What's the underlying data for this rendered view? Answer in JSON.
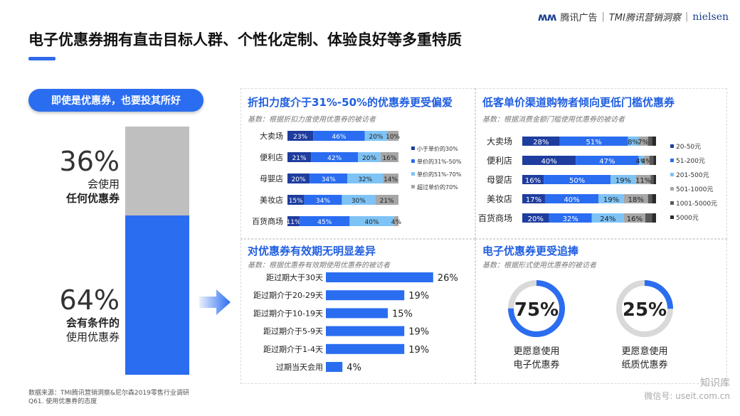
{
  "header": {
    "brand_text": "腾讯广告",
    "sep": "|",
    "brand_tmi": "TMI腾讯营销洞察",
    "brand_nielsen": "nielsen",
    "title": "电子优惠券拥有直击目标人群、个性化定制、体验良好等多重特质"
  },
  "left": {
    "badge": "即使是优惠券，也要投其所好",
    "top_pct": "36%",
    "top_line1": "会使用",
    "top_line2": "任何优惠券",
    "bottom_pct": "64%",
    "bottom_line1": "会有条件的",
    "bottom_line2": "使用优惠券"
  },
  "footer": {
    "source1": "数据来源：TMI腾讯营销洞察&尼尔森2019零售行业调研",
    "source2": "Q61. 使用优惠券的态度",
    "watermark1": "知识库",
    "watermark2": "微信号: useit.com.cn"
  },
  "colors": {
    "dark_blue": "#1f3d9e",
    "blue": "#2a6df0",
    "light_blue": "#7ec3f6",
    "gray": "#a6a6a6",
    "dark_gray": "#595959",
    "darkest": "#2b2b2b"
  },
  "chart_data": [
    {
      "type": "bar",
      "stacked": true,
      "orientation": "horizontal",
      "title": "折扣力度介于31%-50%的优惠券更受偏爱",
      "note": "基数：根据折扣力度使用优惠券的被访者",
      "categories": [
        "大卖场",
        "便利店",
        "母婴店",
        "美妆店",
        "百货商场"
      ],
      "series": [
        {
          "name": "小于单价的30%",
          "values": [
            23,
            21,
            20,
            15,
            11
          ],
          "labels": [
            "23%",
            "21%",
            "20%",
            "15%",
            "11%"
          ]
        },
        {
          "name": "单价的31%-50%",
          "values": [
            46,
            42,
            34,
            34,
            45
          ],
          "labels": [
            "46%",
            "42%",
            "34%",
            "34%",
            "45%"
          ]
        },
        {
          "name": "单价的51%-70%",
          "values": [
            20,
            20,
            32,
            30,
            40
          ],
          "labels": [
            "20%",
            "20%",
            "32%",
            "30%",
            "40%"
          ]
        },
        {
          "name": "超过单价的70%",
          "values": [
            10,
            16,
            14,
            21,
            4
          ],
          "labels": [
            "10%",
            "16%",
            "14%",
            "21%",
            "4%"
          ]
        }
      ]
    },
    {
      "type": "bar",
      "stacked": true,
      "orientation": "horizontal",
      "title": "低客单价渠道购物者倾向更低门槛优惠券",
      "note": "基数：根据消费金额门槛使用优惠券的被访者",
      "categories": [
        "大卖场",
        "便利店",
        "母婴店",
        "美妆店",
        "百货商场"
      ],
      "series": [
        {
          "name": "20-50元",
          "values": [
            28,
            40,
            16,
            17,
            20
          ],
          "labels": [
            "28%",
            "40%",
            "16%",
            "17%",
            "20%"
          ]
        },
        {
          "name": "51-200元",
          "values": [
            51,
            47,
            50,
            40,
            32
          ],
          "labels": [
            "51%",
            "47%",
            "50%",
            "40%",
            "32%"
          ]
        },
        {
          "name": "201-500元",
          "values": [
            8,
            4,
            19,
            19,
            24
          ],
          "labels": [
            "8%",
            "4%",
            "19%",
            "19%",
            "24%"
          ]
        },
        {
          "name": "501-1000元",
          "values": [
            7,
            4,
            11,
            18,
            16
          ],
          "labels": [
            "7%",
            "4%",
            "11%",
            "18%",
            "16%"
          ]
        },
        {
          "name": "1001-5000元",
          "values": [
            3,
            3,
            2,
            3,
            5
          ],
          "labels": [
            "",
            "",
            "",
            "",
            ""
          ]
        },
        {
          "name": "5000元",
          "values": [
            3,
            2,
            2,
            3,
            3
          ],
          "labels": [
            "",
            "",
            "",
            "",
            ""
          ]
        }
      ]
    },
    {
      "type": "bar",
      "orientation": "horizontal",
      "title": "对优惠券有效期无明显差异",
      "note": "基数：根据优惠券有效期使用优惠券的被访者",
      "categories": [
        "距过期大于30天",
        "距过期介于20-29天",
        "距过期介于10-19天",
        "距过期介于5-9天",
        "距过期介于1-4天",
        "过期当天会用"
      ],
      "values": [
        26,
        19,
        15,
        19,
        19,
        4
      ],
      "labels": [
        "26%",
        "19%",
        "15%",
        "19%",
        "19%",
        "4%"
      ]
    },
    {
      "type": "pie",
      "title": "电子优惠券更受追捧",
      "note": "基数：根据形式使用优惠券的被访者",
      "items": [
        {
          "value": 75,
          "label": "75%",
          "caption1": "更愿意使用",
          "caption2": "电子优惠券"
        },
        {
          "value": 25,
          "label": "25%",
          "caption1": "更愿意使用",
          "caption2": "纸质优惠券"
        }
      ]
    }
  ]
}
